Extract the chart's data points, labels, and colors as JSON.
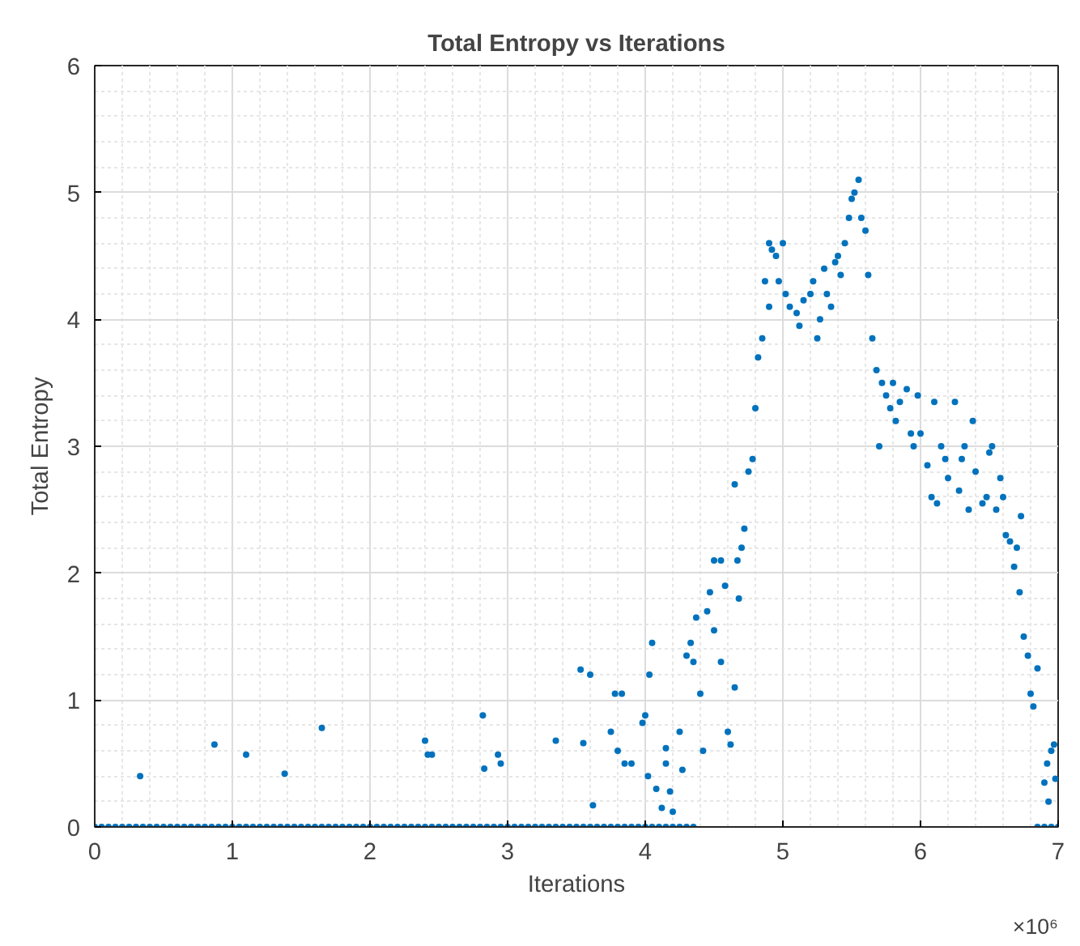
{
  "chart_data": {
    "type": "scatter",
    "title": "Total Entropy vs Iterations",
    "xlabel": "Iterations",
    "ylabel": "Total Entropy",
    "annotations": [
      "×10⁶"
    ],
    "xlim": [
      0,
      7
    ],
    "ylim": [
      0,
      6
    ],
    "xticks": [
      0,
      1,
      2,
      3,
      4,
      5,
      6,
      7
    ],
    "yticks": [
      0,
      1,
      2,
      3,
      4,
      5,
      6
    ],
    "grid": true,
    "marker": "circle",
    "series": [
      {
        "color": "#0072bd",
        "x": [
          0,
          0.05,
          0.1,
          0.15,
          0.2,
          0.25,
          0.3,
          0.35,
          0.4,
          0.45,
          0.5,
          0.55,
          0.6,
          0.65,
          0.7,
          0.75,
          0.8,
          0.85,
          0.9,
          0.95,
          1,
          1.05,
          1.1,
          1.15,
          1.2,
          1.25,
          1.3,
          1.35,
          1.4,
          1.45,
          1.5,
          1.55,
          1.6,
          1.65,
          1.7,
          1.75,
          1.8,
          1.85,
          1.9,
          1.95,
          2,
          2.05,
          2.1,
          2.15,
          2.2,
          2.25,
          2.3,
          2.35,
          2.4,
          2.45,
          2.5,
          2.55,
          2.6,
          2.65,
          2.7,
          2.75,
          2.8,
          2.85,
          2.9,
          2.95,
          3,
          3.05,
          3.1,
          3.15,
          3.2,
          3.25,
          3.3,
          3.35,
          3.4,
          3.45,
          3.5,
          3.55,
          3.6,
          3.65,
          3.7,
          3.75,
          3.8,
          3.85,
          3.9,
          3.95,
          4,
          4.05,
          4.1,
          4.15,
          4.2,
          4.25,
          4.3,
          4.35,
          6.85,
          6.9,
          6.95,
          7,
          0.33,
          0.87,
          1.1,
          1.38,
          1.65,
          2.4,
          2.42,
          2.45,
          2.82,
          2.83,
          2.93,
          2.95,
          3.35,
          3.53,
          3.6,
          3.55,
          3.62,
          3.75,
          3.78,
          3.83,
          3.8,
          3.85,
          3.9,
          3.98,
          4.0,
          4.03,
          4.05,
          4.02,
          4.08,
          4.12,
          4.15,
          4.15,
          4.18,
          4.2,
          4.25,
          4.27,
          4.3,
          4.33,
          4.35,
          4.37,
          4.4,
          4.42,
          4.45,
          4.47,
          4.5,
          4.55,
          4.5,
          4.55,
          4.6,
          4.62,
          4.58,
          4.65,
          4.67,
          4.7,
          4.68,
          4.72,
          4.65,
          4.75,
          4.78,
          4.8,
          4.82,
          4.85,
          4.87,
          4.9,
          4.92,
          4.95,
          4.9,
          4.97,
          5.0,
          5.02,
          5.05,
          5.1,
          5.12,
          5.15,
          5.2,
          5.22,
          5.25,
          5.27,
          5.3,
          5.32,
          5.35,
          5.38,
          5.4,
          5.42,
          5.45,
          5.48,
          5.5,
          5.52,
          5.55,
          5.57,
          5.6,
          5.62,
          5.65,
          5.68,
          5.7,
          5.72,
          5.75,
          5.78,
          5.8,
          5.82,
          5.85,
          5.9,
          5.93,
          5.95,
          5.98,
          6.0,
          6.05,
          6.08,
          6.1,
          6.12,
          6.15,
          6.18,
          6.2,
          6.25,
          6.28,
          6.3,
          6.32,
          6.35,
          6.38,
          6.4,
          6.45,
          6.48,
          6.5,
          6.52,
          6.55,
          6.58,
          6.6,
          6.62,
          6.65,
          6.68,
          6.7,
          6.72,
          6.73,
          6.75,
          6.78,
          6.8,
          6.82,
          6.85,
          6.9,
          6.92,
          6.95,
          6.97,
          6.93,
          6.98
        ],
        "values": [
          0,
          0,
          0,
          0,
          0,
          0,
          0,
          0,
          0,
          0,
          0,
          0,
          0,
          0,
          0,
          0,
          0,
          0,
          0,
          0,
          0,
          0,
          0,
          0,
          0,
          0,
          0,
          0,
          0,
          0,
          0,
          0,
          0,
          0,
          0,
          0,
          0,
          0,
          0,
          0,
          0,
          0,
          0,
          0,
          0,
          0,
          0,
          0,
          0,
          0,
          0,
          0,
          0,
          0,
          0,
          0,
          0,
          0,
          0,
          0,
          0,
          0,
          0,
          0,
          0,
          0,
          0,
          0,
          0,
          0,
          0,
          0,
          0,
          0,
          0,
          0,
          0,
          0,
          0,
          0,
          0,
          0,
          0,
          0,
          0,
          0,
          0,
          0,
          0,
          0,
          0,
          0,
          0.4,
          0.65,
          0.57,
          0.42,
          0.78,
          0.68,
          0.57,
          0.57,
          0.88,
          0.46,
          0.57,
          0.5,
          0.68,
          1.24,
          1.2,
          0.66,
          0.17,
          0.75,
          1.05,
          1.05,
          0.6,
          0.5,
          0.5,
          0.82,
          0.88,
          1.2,
          1.45,
          0.4,
          0.3,
          0.15,
          0.5,
          0.62,
          0.28,
          0.12,
          0.75,
          0.45,
          1.35,
          1.45,
          1.3,
          1.65,
          1.05,
          0.6,
          1.7,
          1.85,
          2.1,
          2.1,
          1.55,
          1.3,
          0.75,
          0.65,
          1.9,
          1.1,
          2.1,
          2.2,
          1.8,
          2.35,
          2.7,
          2.8,
          2.9,
          3.3,
          3.7,
          3.85,
          4.3,
          4.6,
          4.55,
          4.5,
          4.1,
          4.3,
          4.6,
          4.2,
          4.1,
          4.05,
          3.95,
          4.15,
          4.2,
          4.3,
          3.85,
          4.0,
          4.4,
          4.2,
          4.1,
          4.45,
          4.5,
          4.35,
          4.6,
          4.8,
          4.95,
          5.0,
          5.1,
          4.8,
          4.7,
          4.35,
          3.85,
          3.6,
          3.0,
          3.5,
          3.4,
          3.3,
          3.5,
          3.2,
          3.35,
          3.45,
          3.1,
          3.0,
          3.4,
          3.1,
          2.85,
          2.6,
          3.35,
          2.55,
          3.0,
          2.9,
          2.75,
          3.35,
          2.65,
          2.9,
          3.0,
          2.5,
          3.2,
          2.8,
          2.55,
          2.6,
          2.95,
          3.0,
          2.5,
          2.75,
          2.6,
          2.3,
          2.25,
          2.05,
          2.2,
          1.85,
          2.45,
          1.5,
          1.35,
          1.05,
          0.95,
          1.25,
          0.35,
          0.5,
          0.6,
          0.65,
          0.2,
          0.38
        ]
      }
    ]
  }
}
